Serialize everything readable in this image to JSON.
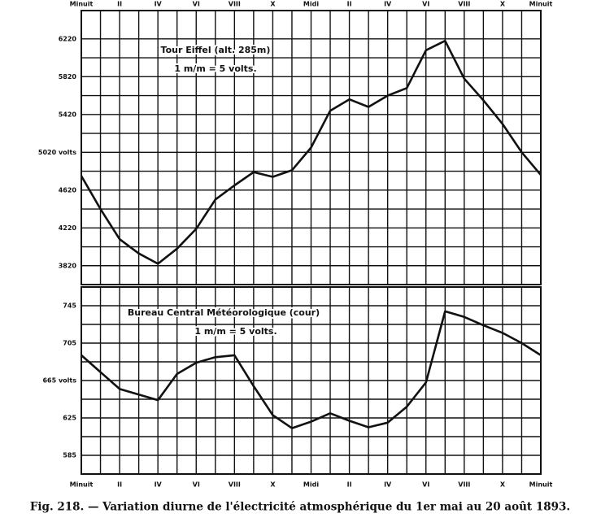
{
  "caption": "Fig. 218. — Variation diurne de l'électricité atmosphérique du 1er mai au 20 août 1893.",
  "chart_data": [
    {
      "type": "line",
      "annotations": [
        "Tour Eiffel (alt. 285m)",
        "1 m/m = 5 volts."
      ],
      "x": [
        0,
        1,
        2,
        3,
        4,
        5,
        6,
        7,
        8,
        9,
        10,
        11,
        12,
        13,
        14,
        15,
        16,
        17,
        18,
        19,
        20,
        21,
        22,
        23,
        24
      ],
      "series": [
        {
          "color": "#111111",
          "values": [
            4770,
            4420,
            4100,
            3950,
            3840,
            4000,
            4210,
            4520,
            4670,
            4810,
            4760,
            4830,
            5070,
            5460,
            5580,
            5500,
            5620,
            5700,
            6100,
            6200,
            5800,
            5570,
            5320,
            5020,
            4780
          ]
        }
      ],
      "xlim": [
        0,
        24
      ],
      "xticks": [
        {
          "value": 0,
          "label": "Minuit"
        },
        {
          "value": 2,
          "label": "II"
        },
        {
          "value": 4,
          "label": "IV"
        },
        {
          "value": 6,
          "label": "VI"
        },
        {
          "value": 8,
          "label": "VIII"
        },
        {
          "value": 10,
          "label": "X"
        },
        {
          "value": 12,
          "label": "Midi"
        },
        {
          "value": 14,
          "label": "II"
        },
        {
          "value": 16,
          "label": "IV"
        },
        {
          "value": 18,
          "label": "VI"
        },
        {
          "value": 20,
          "label": "VIII"
        },
        {
          "value": 22,
          "label": "X"
        },
        {
          "value": 24,
          "label": "Minuit"
        }
      ],
      "ylim": [
        3620,
        6520
      ],
      "yticks": [
        3820,
        4220,
        4620,
        {
          "value": 5020,
          "label": "5020 volts"
        },
        5420,
        5820,
        6220
      ],
      "grid": true
    },
    {
      "type": "line",
      "annotations": [
        "Bureau Central Météorologique (cour)",
        "1 m/m = 5 volts."
      ],
      "x": [
        0,
        1,
        2,
        3,
        4,
        5,
        6,
        7,
        8,
        9,
        10,
        11,
        12,
        13,
        14,
        15,
        16,
        17,
        18,
        19,
        20,
        21,
        22,
        23,
        24
      ],
      "series": [
        {
          "color": "#111111",
          "values": [
            692,
            674,
            656,
            650,
            644,
            672,
            684,
            690,
            692,
            659,
            628,
            614,
            621,
            630,
            622,
            615,
            620,
            637,
            663,
            739,
            733,
            724,
            716,
            705,
            692
          ]
        }
      ],
      "xlim": [
        0,
        24
      ],
      "xticks": [
        {
          "value": 0,
          "label": "Minuit"
        },
        {
          "value": 2,
          "label": "II"
        },
        {
          "value": 4,
          "label": "IV"
        },
        {
          "value": 6,
          "label": "VI"
        },
        {
          "value": 8,
          "label": "VIII"
        },
        {
          "value": 10,
          "label": "X"
        },
        {
          "value": 12,
          "label": "Midi"
        },
        {
          "value": 14,
          "label": "II"
        },
        {
          "value": 16,
          "label": "IV"
        },
        {
          "value": 18,
          "label": "VI"
        },
        {
          "value": 20,
          "label": "VIII"
        },
        {
          "value": 22,
          "label": "X"
        },
        {
          "value": 24,
          "label": "Minuit"
        }
      ],
      "ylim": [
        565,
        765
      ],
      "yticks": [
        585,
        625,
        {
          "value": 665,
          "label": "665 volts"
        },
        705,
        745
      ],
      "grid": true
    }
  ]
}
